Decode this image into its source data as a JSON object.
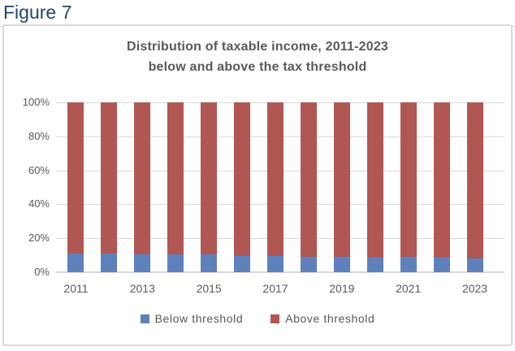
{
  "figure": {
    "label": "Figure 7"
  },
  "chart": {
    "title_line1": "Distribution of taxable income, 2011-2023",
    "title_line2": "below and above the tax threshold"
  },
  "chart_data": {
    "type": "bar",
    "stacked": true,
    "units": "percent",
    "title": "Distribution of taxable income, 2011-2023 below and above the tax threshold",
    "xlabel": "",
    "ylabel": "",
    "ylim": [
      0,
      100
    ],
    "grid": "horizontal",
    "legend_position": "bottom",
    "categories": [
      "2011",
      "2012",
      "2013",
      "2014",
      "2015",
      "2016",
      "2017",
      "2018",
      "2019",
      "2020",
      "2021",
      "2022",
      "2023"
    ],
    "x_tick_labels_shown": [
      "2011",
      "2013",
      "2015",
      "2017",
      "2019",
      "2021",
      "2023"
    ],
    "yticks": [
      {
        "value": 0,
        "label": "0%"
      },
      {
        "value": 20,
        "label": "20%"
      },
      {
        "value": 40,
        "label": "40%"
      },
      {
        "value": 60,
        "label": "60%"
      },
      {
        "value": 80,
        "label": "80%"
      },
      {
        "value": 100,
        "label": "100%"
      }
    ],
    "series": [
      {
        "name": "Below threshold",
        "color": "#5e81bb",
        "values": [
          11,
          11,
          10.5,
          10.3,
          10.3,
          9.8,
          9.5,
          9.2,
          9.0,
          8.7,
          9.0,
          8.5,
          8.0
        ]
      },
      {
        "name": "Above threshold",
        "color": "#b15753",
        "values": [
          89,
          89,
          89.5,
          89.7,
          89.7,
          90.2,
          90.5,
          90.8,
          91.0,
          91.3,
          91.0,
          91.5,
          92.0
        ]
      }
    ]
  },
  "colors": {
    "below_threshold": "#5e81bb",
    "above_threshold": "#b15753",
    "gridline": "#d9d9d9",
    "chart_border": "#d9d9d9",
    "text_gray": "#595959",
    "figure_label_navy": "#254668"
  }
}
